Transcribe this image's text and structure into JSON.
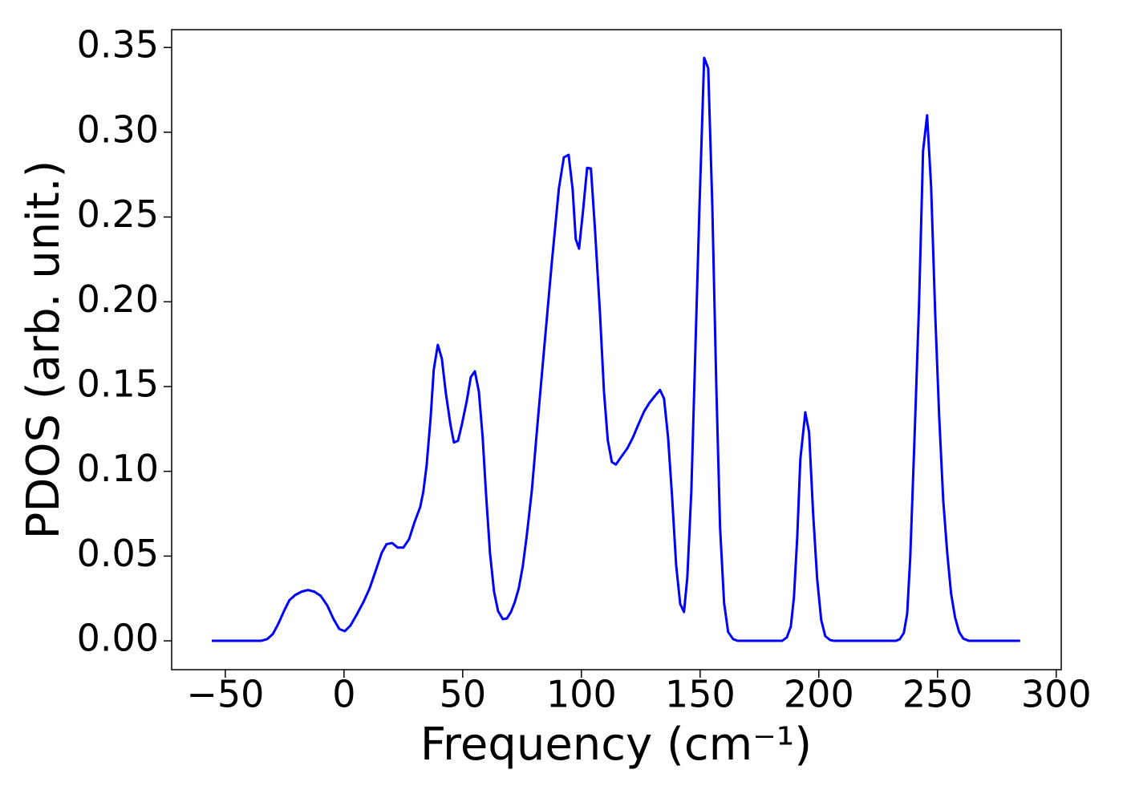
{
  "chart_data": {
    "type": "line",
    "xlabel": "Frequency (cm⁻¹)",
    "ylabel": "PDOS (arb. unit.)",
    "color": "#0000ff",
    "x": [
      -55.7,
      -35,
      -32.4,
      -30,
      -27.7,
      -25.3,
      -23,
      -20.6,
      -17.9,
      -15.2,
      -12.5,
      -9.8,
      -7.1,
      -4.4,
      -2,
      0.3,
      2.7,
      5.4,
      8.1,
      10.8,
      13.5,
      15.9,
      17.9,
      20.3,
      22.6,
      25,
      27.4,
      29.7,
      32.1,
      33.4,
      34.8,
      36.5,
      37.8,
      39.5,
      41.2,
      42.9,
      44.9,
      46.3,
      48,
      49.7,
      51.7,
      53.4,
      55.1,
      56.8,
      58.4,
      59.8,
      61.5,
      63.2,
      64.9,
      66.9,
      68.6,
      70.3,
      71.9,
      73.6,
      75.3,
      77,
      79.1,
      81.4,
      84.1,
      87.5,
      90.5,
      92.6,
      94.6,
      96.3,
      97.6,
      99,
      100.7,
      102.4,
      104,
      105.7,
      107.8,
      109.5,
      111.1,
      112.8,
      114.5,
      116.9,
      119.3,
      121.6,
      124,
      126.4,
      128.7,
      131.1,
      133.1,
      134.8,
      136.5,
      138.2,
      139.9,
      141.6,
      143.2,
      144.6,
      146.3,
      148,
      149.7,
      151.7,
      153.4,
      155.1,
      156.8,
      158.4,
      160.1,
      161.8,
      163.9,
      165.9,
      184.5,
      186.5,
      188.2,
      189.5,
      190.9,
      192.2,
      194.3,
      195.9,
      197.6,
      199.3,
      201,
      202.7,
      204.7,
      206.4,
      232.4,
      234.1,
      235.8,
      237.2,
      238.5,
      240.2,
      242.2,
      243.9,
      245.6,
      247.3,
      249,
      250.7,
      252.4,
      254.1,
      255.7,
      257.4,
      259.1,
      260.8,
      263.2,
      284.8
    ],
    "values": [
      0,
      0,
      0.001,
      0.004,
      0.01,
      0.0175,
      0.024,
      0.027,
      0.029,
      0.03,
      0.029,
      0.0265,
      0.021,
      0.0128,
      0.007,
      0.0057,
      0.009,
      0.0156,
      0.0227,
      0.031,
      0.042,
      0.052,
      0.057,
      0.0577,
      0.055,
      0.055,
      0.06,
      0.07,
      0.079,
      0.088,
      0.1036,
      0.132,
      0.16,
      0.1746,
      0.1665,
      0.146,
      0.127,
      0.117,
      0.118,
      0.128,
      0.1415,
      0.1556,
      0.159,
      0.147,
      0.12,
      0.087,
      0.0516,
      0.029,
      0.0175,
      0.0128,
      0.0132,
      0.017,
      0.0227,
      0.031,
      0.044,
      0.0624,
      0.0885,
      0.1263,
      0.1693,
      0.2228,
      0.2668,
      0.2852,
      0.2867,
      0.2663,
      0.237,
      0.2313,
      0.254,
      0.279,
      0.2786,
      0.243,
      0.1935,
      0.147,
      0.1183,
      0.1055,
      0.104,
      0.1088,
      0.1135,
      0.1197,
      0.1277,
      0.1353,
      0.1405,
      0.1447,
      0.148,
      0.1429,
      0.12,
      0.0847,
      0.0445,
      0.0218,
      0.017,
      0.0374,
      0.0885,
      0.1722,
      0.255,
      0.3439,
      0.3377,
      0.2583,
      0.1509,
      0.0667,
      0.0222,
      0.0052,
      0.001,
      0,
      0,
      0.002,
      0.0085,
      0.0255,
      0.061,
      0.107,
      0.1348,
      0.123,
      0.075,
      0.0364,
      0.0123,
      0.0028,
      0.0005,
      0,
      0,
      0.001,
      0.0047,
      0.016,
      0.049,
      0.1154,
      0.198,
      0.289,
      0.31,
      0.2677,
      0.1935,
      0.132,
      0.0828,
      0.0516,
      0.0279,
      0.0137,
      0.0052,
      0.0014,
      0,
      0
    ],
    "xlim": [
      -72.6,
      302.1
    ],
    "ylim": [
      -0.017,
      0.3605
    ],
    "xticks": [
      {
        "value": -50,
        "label": "−50"
      },
      0,
      50,
      100,
      150,
      200,
      250,
      300
    ],
    "yticks": [
      {
        "value": 0,
        "label": "0.00"
      },
      {
        "value": 0.05,
        "label": "0.05"
      },
      {
        "value": 0.1,
        "label": "0.10"
      },
      {
        "value": 0.15,
        "label": "0.15"
      },
      {
        "value": 0.2,
        "label": "0.20"
      },
      {
        "value": 0.25,
        "label": "0.25"
      },
      {
        "value": 0.3,
        "label": "0.30"
      },
      {
        "value": 0.35,
        "label": "0.35"
      }
    ]
  }
}
